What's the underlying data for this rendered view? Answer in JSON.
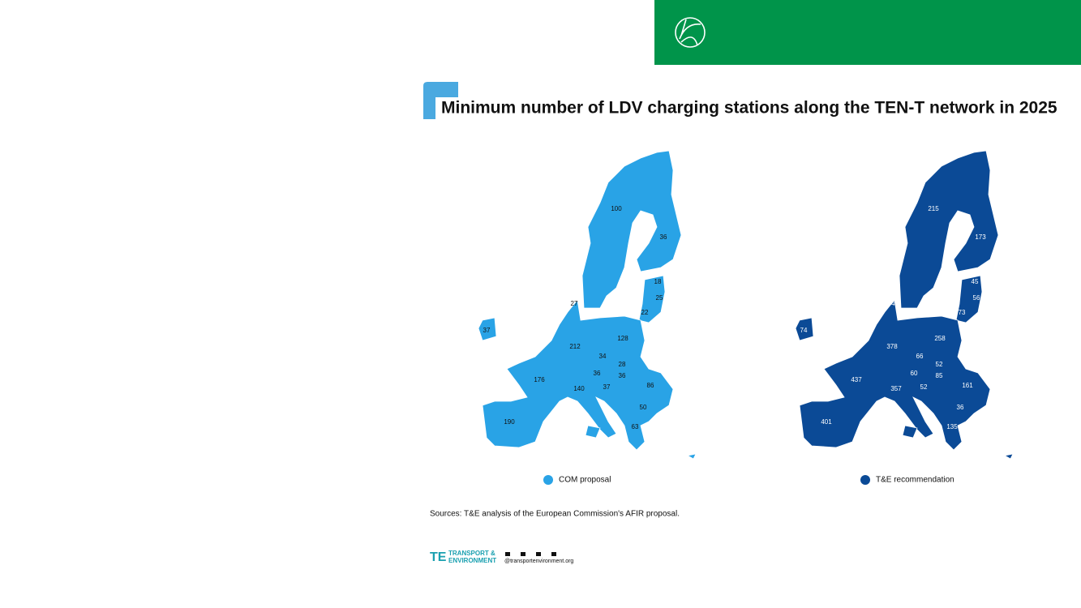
{
  "title": "Minimum number of LDV charging stations along the TEN-T network in 2025",
  "maps": [
    {
      "legend": "COM proposal",
      "color": "#29a3e6",
      "label_color": "#111111",
      "values": [
        100,
        36,
        18,
        25,
        22,
        27,
        37,
        128,
        212,
        34,
        28,
        36,
        36,
        176,
        140,
        37,
        86,
        50,
        63,
        190
      ]
    },
    {
      "legend": "T&E recommendation",
      "color": "#0b4a96",
      "label_color": "#ffffff",
      "values": [
        215,
        173,
        45,
        56,
        73,
        54,
        74,
        258,
        378,
        66,
        52,
        60,
        85,
        437,
        357,
        52,
        161,
        36,
        135,
        401
      ]
    }
  ],
  "sources": "Sources: T&E analysis of the European Commission's AFIR proposal.",
  "footer": {
    "brand": [
      "TRANSPORT &",
      "ENVIRONMENT"
    ],
    "handle": "@transportenvironment.org"
  }
}
